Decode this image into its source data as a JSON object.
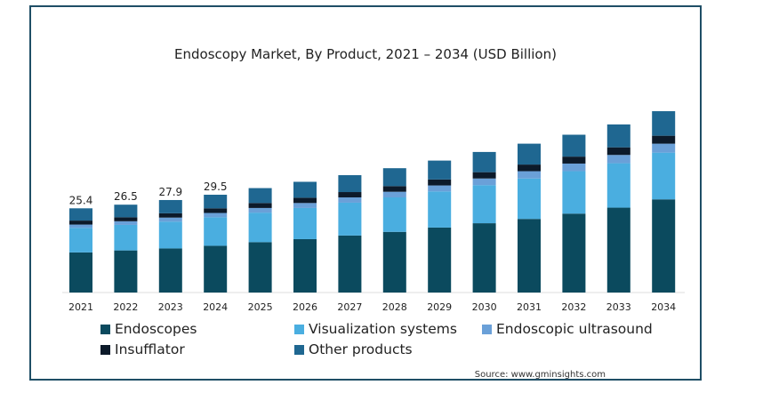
{
  "chart_data": {
    "type": "bar",
    "stacked": true,
    "title": "Endoscopy Market, By Product, 2021 – 2034 (USD Billion)",
    "xlabel": "",
    "ylabel": "",
    "ylim": [
      0,
      70
    ],
    "grid": false,
    "legend_placement": "bottom",
    "categories": [
      "2021",
      "2022",
      "2023",
      "2024",
      "2025",
      "2026",
      "2027",
      "2028",
      "2029",
      "2030",
      "2031",
      "2032",
      "2033",
      "2034"
    ],
    "total_labels": [
      "25.4",
      "26.5",
      "27.9",
      "29.5",
      "",
      "",
      "",
      "",
      "",
      "",
      "",
      "",
      "",
      ""
    ],
    "series": [
      {
        "name": "Endoscopes",
        "color": "#0b4a5e",
        "values": [
          12.1,
          12.7,
          13.3,
          14.1,
          15.2,
          16.1,
          17.2,
          18.3,
          19.6,
          20.9,
          22.2,
          23.8,
          25.6,
          28.1
        ]
      },
      {
        "name": "Visualization systems",
        "color": "#4aaee0",
        "values": [
          7.4,
          7.7,
          8.1,
          8.6,
          8.9,
          9.4,
          9.9,
          10.4,
          10.9,
          11.5,
          12.2,
          12.8,
          13.4,
          14.1
        ]
      },
      {
        "name": "Endoscopic ultrasound",
        "color": "#6aa0d8",
        "values": [
          1.0,
          1.1,
          1.2,
          1.3,
          1.4,
          1.5,
          1.6,
          1.7,
          1.8,
          2.0,
          2.2,
          2.3,
          2.5,
          2.7
        ]
      },
      {
        "name": "Insufflator",
        "color": "#0c1a2a",
        "values": [
          1.2,
          1.2,
          1.3,
          1.4,
          1.5,
          1.6,
          1.6,
          1.7,
          1.8,
          1.9,
          2.0,
          2.1,
          2.3,
          2.4
        ]
      },
      {
        "name": "Other products",
        "color": "#1f6791",
        "values": [
          3.7,
          3.8,
          4.0,
          4.1,
          4.5,
          4.8,
          5.1,
          5.4,
          5.7,
          6.1,
          6.3,
          6.6,
          6.9,
          7.4
        ]
      }
    ],
    "source": "Source: www.gminsights.com"
  }
}
